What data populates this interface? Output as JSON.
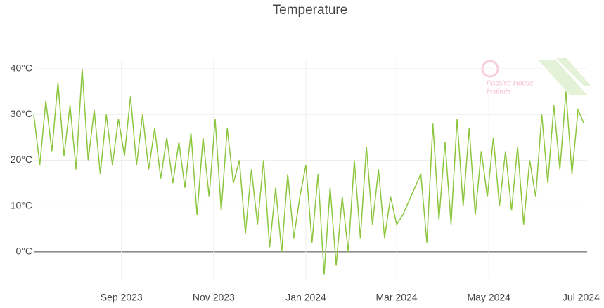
{
  "chart_data": {
    "type": "line",
    "title": "Temperature",
    "logo": {
      "name": "Passive House",
      "subname": "Institute"
    },
    "x": [
      "2023-07-05",
      "2023-07-09",
      "2023-07-13",
      "2023-07-17",
      "2023-07-21",
      "2023-07-25",
      "2023-07-29",
      "2023-08-02",
      "2023-08-06",
      "2023-08-10",
      "2023-08-14",
      "2023-08-18",
      "2023-08-22",
      "2023-08-26",
      "2023-08-30",
      "2023-09-03",
      "2023-09-07",
      "2023-09-11",
      "2023-09-15",
      "2023-09-19",
      "2023-09-23",
      "2023-09-27",
      "2023-10-01",
      "2023-10-05",
      "2023-10-09",
      "2023-10-13",
      "2023-10-17",
      "2023-10-21",
      "2023-10-25",
      "2023-10-29",
      "2023-11-02",
      "2023-11-06",
      "2023-11-10",
      "2023-11-14",
      "2023-11-18",
      "2023-11-22",
      "2023-11-26",
      "2023-11-30",
      "2023-12-04",
      "2023-12-08",
      "2023-12-12",
      "2023-12-16",
      "2023-12-20",
      "2023-12-24",
      "2023-12-28",
      "2024-01-01",
      "2024-01-05",
      "2024-01-09",
      "2024-01-13",
      "2024-01-17",
      "2024-01-21",
      "2024-01-25",
      "2024-01-29",
      "2024-02-02",
      "2024-02-06",
      "2024-02-10",
      "2024-02-14",
      "2024-02-18",
      "2024-02-22",
      "2024-02-26",
      "2024-03-01",
      "2024-03-05",
      "2024-03-09",
      "2024-03-13",
      "2024-03-17",
      "2024-03-21",
      "2024-03-25",
      "2024-03-29",
      "2024-04-02",
      "2024-04-06",
      "2024-04-10",
      "2024-04-14",
      "2024-04-18",
      "2024-04-22",
      "2024-04-26",
      "2024-04-30",
      "2024-05-04",
      "2024-05-08",
      "2024-05-12",
      "2024-05-16",
      "2024-05-20",
      "2024-05-24",
      "2024-05-28",
      "2024-06-01",
      "2024-06-05",
      "2024-06-09",
      "2024-06-13",
      "2024-06-17",
      "2024-06-21",
      "2024-06-25",
      "2024-06-29",
      "2024-07-03"
    ],
    "series": [
      {
        "name": "Temperature",
        "color": "#8cc63e",
        "values": [
          30,
          19,
          33,
          22,
          37,
          21,
          32,
          18,
          40,
          20,
          31,
          17,
          30,
          19,
          29,
          21,
          34,
          19,
          30,
          18,
          27,
          16,
          25,
          15,
          24,
          14,
          26,
          8,
          25,
          12,
          29,
          9,
          27,
          15,
          20,
          4,
          18,
          6,
          20,
          1,
          14,
          0,
          17,
          3,
          12,
          19,
          2,
          17,
          -5,
          14,
          -3,
          12,
          0,
          20,
          3,
          23,
          6,
          18,
          3,
          12,
          6,
          8,
          11,
          14,
          17,
          2,
          28,
          7,
          24,
          6,
          29,
          10,
          27,
          8,
          22,
          12,
          25,
          10,
          22,
          9,
          23,
          6,
          20,
          12,
          30,
          15,
          32,
          18,
          35,
          17,
          31,
          28
        ]
      }
    ],
    "xlim": [
      "2023-07-05",
      "2024-07-05"
    ],
    "xticks": [
      {
        "value": "2023-09-01",
        "label": "Sep 2023"
      },
      {
        "value": "2023-11-01",
        "label": "Nov 2023"
      },
      {
        "value": "2024-01-01",
        "label": "Jan 2024"
      },
      {
        "value": "2024-03-01",
        "label": "Mar 2024"
      },
      {
        "value": "2024-05-01",
        "label": "May 2024"
      },
      {
        "value": "2024-07-01",
        "label": "Jul 2024"
      }
    ],
    "ylim": [
      -6,
      42
    ],
    "yticks": [
      {
        "value": 0,
        "label": "0°C"
      },
      {
        "value": 10,
        "label": "10°C"
      },
      {
        "value": 20,
        "label": "20°C"
      },
      {
        "value": 30,
        "label": "30°C"
      },
      {
        "value": 40,
        "label": "40°C"
      }
    ],
    "grid": true
  }
}
